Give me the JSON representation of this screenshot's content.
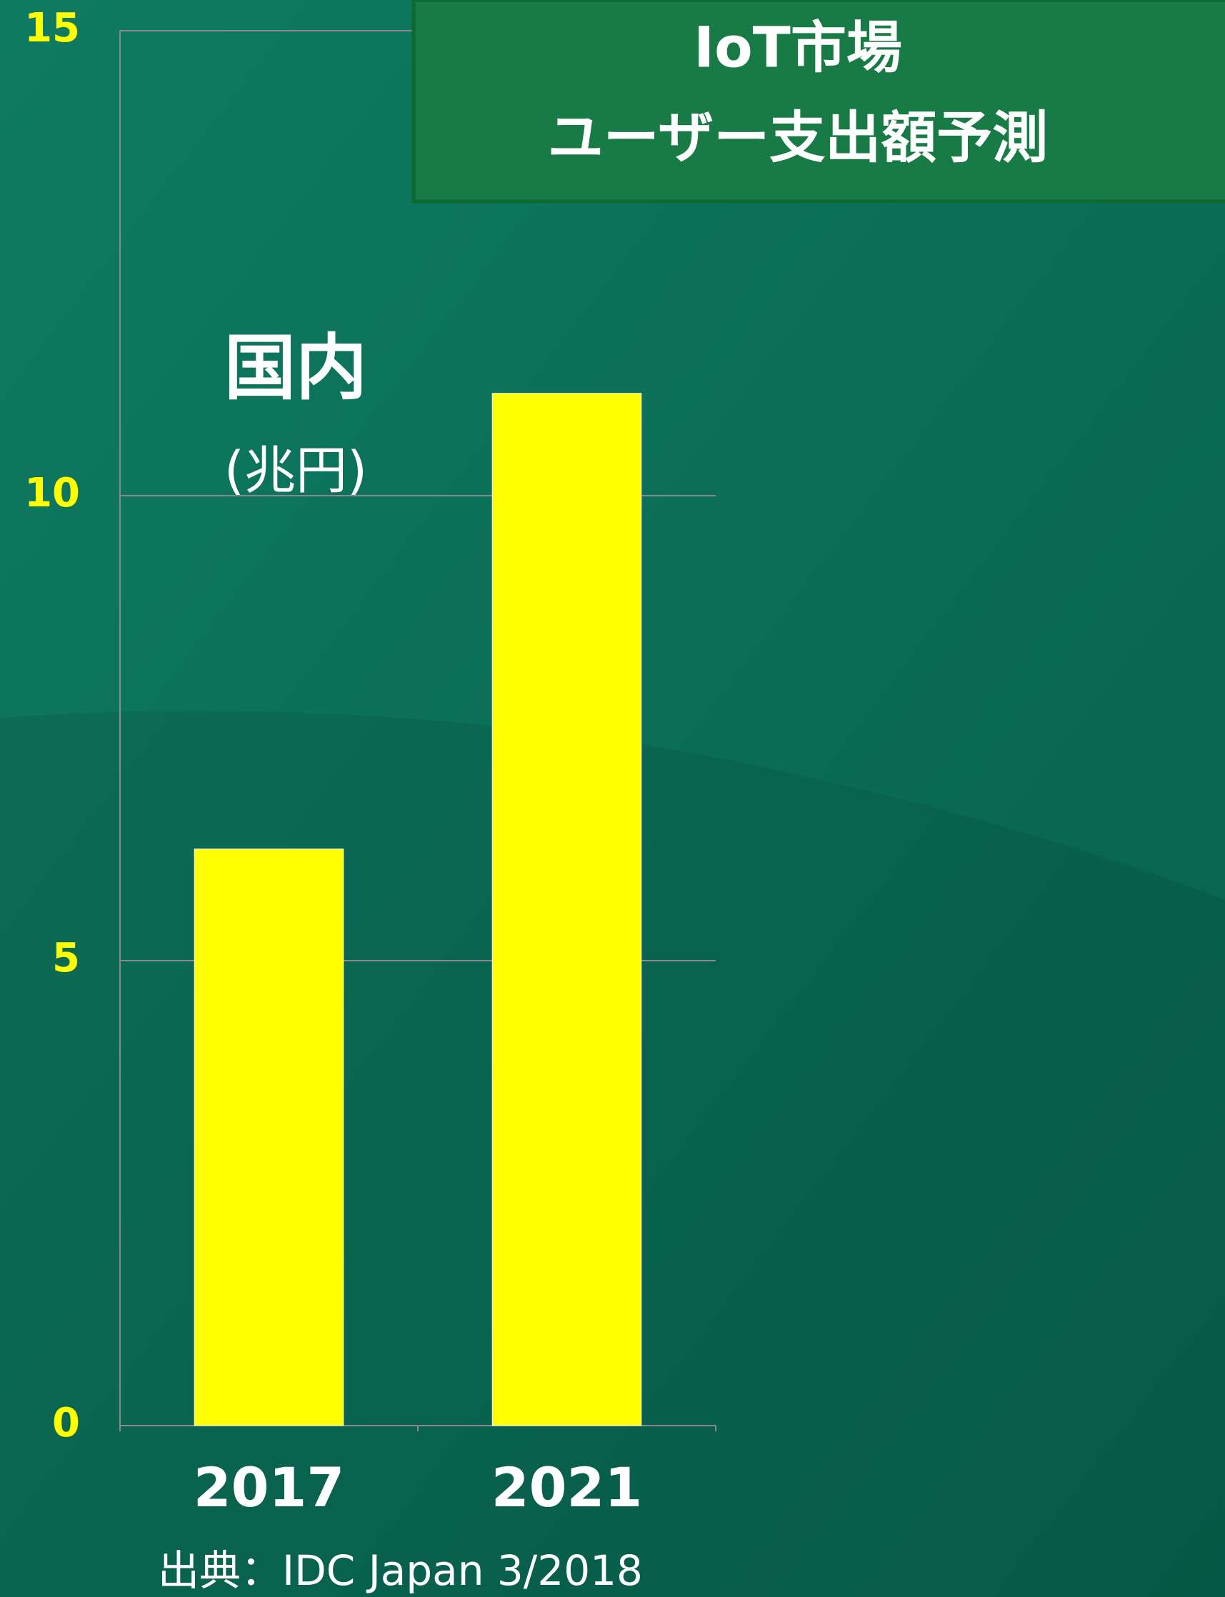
{
  "chart_data": {
    "type": "bar",
    "title": "IoT市場",
    "subtitle": "ユーザー支出額予測",
    "annotations": [
      "国内",
      "(兆円)"
    ],
    "source": "出典：IDC Japan 3/2018",
    "categories": [
      "2017",
      "2021"
    ],
    "values": [
      6.2,
      11.1
    ],
    "color": "#ffff00",
    "ylim": [
      0,
      15
    ],
    "yticks": [
      0,
      5,
      10,
      15
    ],
    "grid": true
  }
}
